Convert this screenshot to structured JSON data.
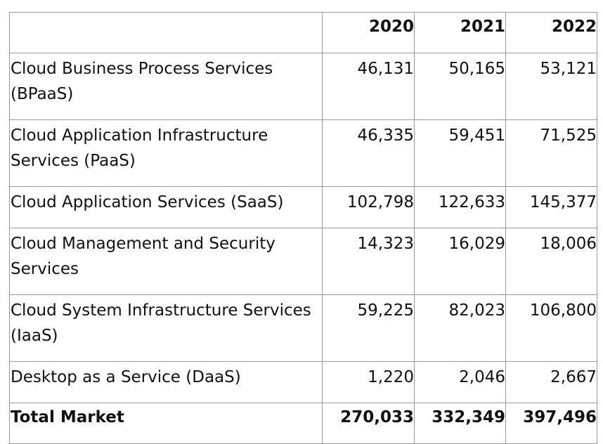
{
  "table": {
    "columns": [
      "",
      "2020",
      "2021",
      "2022"
    ],
    "rows": [
      {
        "label": "Cloud Business Process Services (BPaaS)",
        "values": [
          "46,131",
          "50,165",
          "53,121"
        ]
      },
      {
        "label": "Cloud Application Infrastructure Services (PaaS)",
        "values": [
          "46,335",
          "59,451",
          "71,525"
        ]
      },
      {
        "label": "Cloud Application Services (SaaS)",
        "values": [
          "102,798",
          "122,633",
          "145,377"
        ]
      },
      {
        "label": "Cloud Management and Security Services",
        "values": [
          "14,323",
          "16,029",
          "18,006"
        ]
      },
      {
        "label": "Cloud System Infrastructure Services (IaaS)",
        "values": [
          "59,225",
          "82,023",
          "106,800"
        ]
      },
      {
        "label": "Desktop as a Service (DaaS)",
        "values": [
          "1,220",
          "2,046",
          "2,667"
        ]
      }
    ],
    "total": {
      "label": "Total Market",
      "values": [
        "270,033",
        "332,349",
        "397,496"
      ]
    }
  }
}
